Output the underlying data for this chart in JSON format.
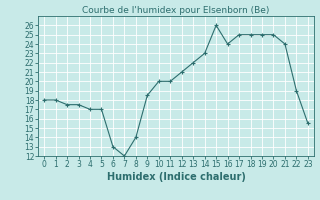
{
  "x": [
    0,
    1,
    2,
    3,
    4,
    5,
    6,
    7,
    8,
    9,
    10,
    11,
    12,
    13,
    14,
    15,
    16,
    17,
    18,
    19,
    20,
    21,
    22,
    23
  ],
  "y": [
    18,
    18,
    17.5,
    17.5,
    17,
    17,
    13,
    12,
    14,
    18.5,
    20,
    20,
    21,
    22,
    23,
    26,
    24,
    25,
    25,
    25,
    25,
    24,
    19,
    15.5
  ],
  "line_color": "#2d6e6e",
  "marker": "+",
  "bg_color": "#c8eae8",
  "grid_color": "#ffffff",
  "title": "Courbe de l'humidex pour Elsenborn (Be)",
  "xlabel": "Humidex (Indice chaleur)",
  "ylabel": "",
  "ylim": [
    12,
    27
  ],
  "xlim": [
    -0.5,
    23.5
  ],
  "yticks": [
    12,
    13,
    14,
    15,
    16,
    17,
    18,
    19,
    20,
    21,
    22,
    23,
    24,
    25,
    26
  ],
  "xticks": [
    0,
    1,
    2,
    3,
    4,
    5,
    6,
    7,
    8,
    9,
    10,
    11,
    12,
    13,
    14,
    15,
    16,
    17,
    18,
    19,
    20,
    21,
    22,
    23
  ],
  "xtick_labels": [
    "0",
    "1",
    "2",
    "3",
    "4",
    "5",
    "6",
    "7",
    "8",
    "9",
    "10",
    "11",
    "12",
    "13",
    "14",
    "15",
    "16",
    "17",
    "18",
    "19",
    "20",
    "21",
    "22",
    "23"
  ],
  "title_fontsize": 6.5,
  "label_fontsize": 7,
  "tick_fontsize": 5.5
}
